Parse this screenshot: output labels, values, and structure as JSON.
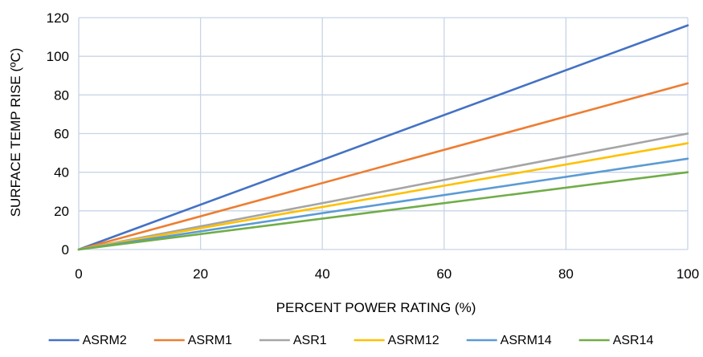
{
  "chart_data": {
    "type": "line",
    "title": "",
    "xlabel": "PERCENT POWER RATING (%)",
    "ylabel": "SURFACE TEMP RISE (ºC)",
    "xlim": [
      0,
      100
    ],
    "ylim": [
      0,
      120
    ],
    "x_ticks": [
      0,
      20,
      40,
      60,
      80,
      100
    ],
    "y_ticks": [
      0,
      20,
      40,
      60,
      80,
      100,
      120
    ],
    "grid": true,
    "legend_position": "bottom",
    "x": [
      0,
      100
    ],
    "series": [
      {
        "name": "ASRM2",
        "color": "#4472c4",
        "values": [
          0,
          116
        ]
      },
      {
        "name": "ASRM1",
        "color": "#ed7d31",
        "values": [
          0,
          86
        ]
      },
      {
        "name": "ASR1",
        "color": "#a5a5a5",
        "values": [
          0,
          60
        ]
      },
      {
        "name": "ASRM12",
        "color": "#ffc000",
        "values": [
          0,
          55
        ]
      },
      {
        "name": "ASRM14",
        "color": "#5b9bd5",
        "values": [
          0,
          47
        ]
      },
      {
        "name": "ASR14",
        "color": "#70ad47",
        "values": [
          0,
          40
        ]
      }
    ]
  }
}
